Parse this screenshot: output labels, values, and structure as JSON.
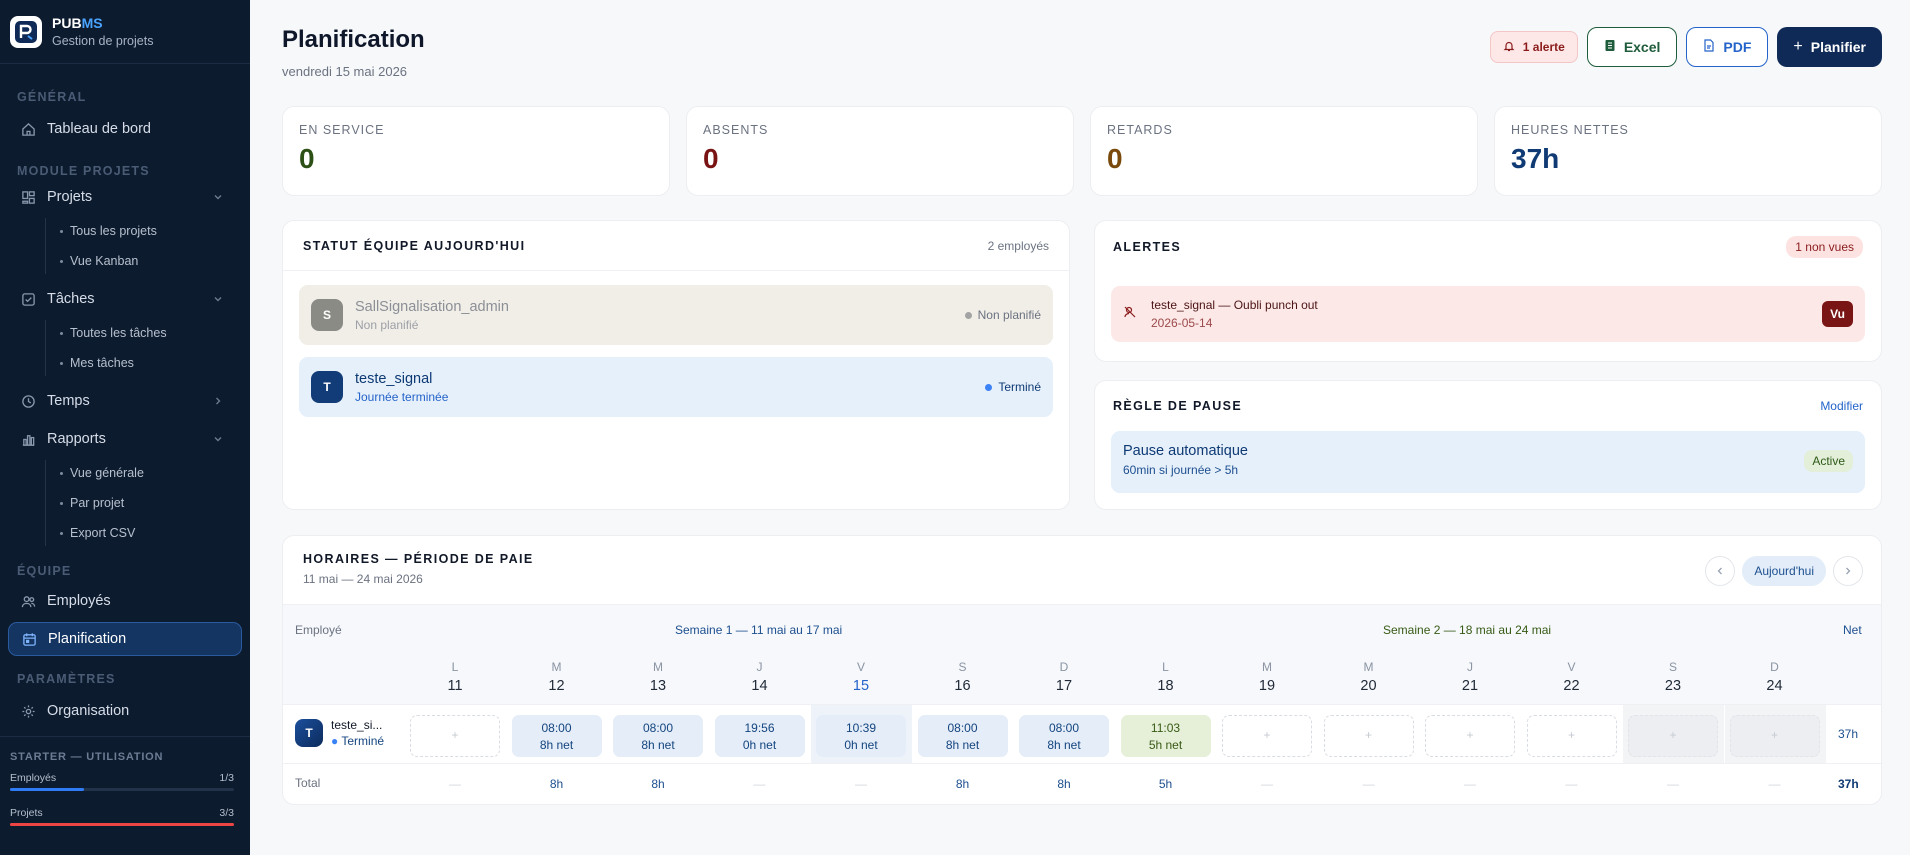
{
  "brand": {
    "name_a": "PUB",
    "name_b": "MS",
    "subtitle": "Gestion de projets"
  },
  "sidebar": {
    "sections": {
      "general": "GÉNÉRAL",
      "projects": "MODULE PROJETS",
      "team": "ÉQUIPE",
      "settings": "PARAMÈTRES"
    },
    "dashboard": "Tableau de bord",
    "projets": {
      "label": "Projets",
      "subs": [
        "Tous les projets",
        "Vue Kanban"
      ]
    },
    "taches": {
      "label": "Tâches",
      "subs": [
        "Toutes les tâches",
        "Mes tâches"
      ]
    },
    "temps": "Temps",
    "rapports": {
      "label": "Rapports",
      "subs": [
        "Vue générale",
        "Par projet",
        "Export CSV"
      ]
    },
    "employes": "Employés",
    "planification": "Planification",
    "organisation": "Organisation",
    "usage": {
      "title": "STARTER — UTILISATION",
      "employes_label": "Employés",
      "employes_count": "1/3",
      "employes_fraction": 0.33,
      "projets_label": "Projets",
      "projets_count": "3/3",
      "projets_fraction": 1.0
    },
    "colors": {
      "employes_bar": "#2f7cf6",
      "projets_bar": "#ef4444"
    }
  },
  "header": {
    "title": "Planification",
    "date": "vendredi 15 mai 2026",
    "alert_label": "1 alerte",
    "excel_label": "Excel",
    "pdf_label": "PDF",
    "plan_label": "Planifier"
  },
  "stats": [
    {
      "label": "EN SERVICE",
      "value": "0",
      "color": "#2d5016"
    },
    {
      "label": "ABSENTS",
      "value": "0",
      "color": "#7a1414"
    },
    {
      "label": "RETARDS",
      "value": "0",
      "color": "#7a4a0c"
    },
    {
      "label": "HEURES NETTES",
      "value": "37h",
      "color": "#0f3a73"
    }
  ],
  "team": {
    "title": "STATUT ÉQUIPE AUJOURD'HUI",
    "count": "2 employés",
    "members": [
      {
        "initial": "S",
        "name": "SallSignalisation_admin",
        "sub": "Non planifié",
        "status": "Non planifié"
      },
      {
        "initial": "T",
        "name": "teste_signal",
        "sub": "Journée terminée",
        "status": "Terminé"
      }
    ]
  },
  "alerts": {
    "title": "ALERTES",
    "badge": "1 non vues",
    "items": [
      {
        "text": "teste_signal — Oubli punch out",
        "date": "2026-05-14",
        "action": "Vu"
      }
    ]
  },
  "pause": {
    "title": "RÈGLE DE PAUSE",
    "link": "Modifier",
    "name": "Pause automatique",
    "desc": "60min si journée > 5h",
    "status": "Active"
  },
  "schedule": {
    "title": "HORAIRES — PÉRIODE DE PAIE",
    "range": "11 mai — 24 mai 2026",
    "today_label": "Aujourd'hui",
    "col_employee": "Employé",
    "week1": "Semaine 1 — 11 mai au 17 mai",
    "week2": "Semaine 2 — 18 mai au 24 mai",
    "col_net": "Net",
    "days": [
      {
        "l": "L",
        "n": "11"
      },
      {
        "l": "M",
        "n": "12"
      },
      {
        "l": "M",
        "n": "13"
      },
      {
        "l": "J",
        "n": "14"
      },
      {
        "l": "V",
        "n": "15"
      },
      {
        "l": "S",
        "n": "16"
      },
      {
        "l": "D",
        "n": "17"
      },
      {
        "l": "L",
        "n": "18"
      },
      {
        "l": "M",
        "n": "19"
      },
      {
        "l": "M",
        "n": "20"
      },
      {
        "l": "J",
        "n": "21"
      },
      {
        "l": "V",
        "n": "22"
      },
      {
        "l": "S",
        "n": "23"
      },
      {
        "l": "D",
        "n": "24"
      }
    ],
    "employee": {
      "initial": "T",
      "name": "teste_si...",
      "status": "Terminé"
    },
    "cells": [
      {
        "t": "",
        "n": "",
        "k": "empty"
      },
      {
        "t": "08:00",
        "n": "8h net",
        "k": "blue"
      },
      {
        "t": "08:00",
        "n": "8h net",
        "k": "blue"
      },
      {
        "t": "19:56",
        "n": "0h net",
        "k": "blue"
      },
      {
        "t": "10:39",
        "n": "0h net",
        "k": "blue"
      },
      {
        "t": "08:00",
        "n": "8h net",
        "k": "blue"
      },
      {
        "t": "08:00",
        "n": "8h net",
        "k": "blue"
      },
      {
        "t": "11:03",
        "n": "5h net",
        "k": "green"
      },
      {
        "t": "",
        "n": "",
        "k": "empty"
      },
      {
        "t": "",
        "n": "",
        "k": "empty"
      },
      {
        "t": "",
        "n": "",
        "k": "empty"
      },
      {
        "t": "",
        "n": "",
        "k": "empty"
      },
      {
        "t": "",
        "n": "",
        "k": "empty"
      },
      {
        "t": "",
        "n": "",
        "k": "empty"
      }
    ],
    "add_glyph": "+",
    "emp_net": "37h",
    "total_label": "Total",
    "totals": [
      "—",
      "8h",
      "8h",
      "—",
      "—",
      "8h",
      "8h",
      "5h",
      "—",
      "—",
      "—",
      "—",
      "—",
      "—"
    ],
    "total_net": "37h"
  }
}
